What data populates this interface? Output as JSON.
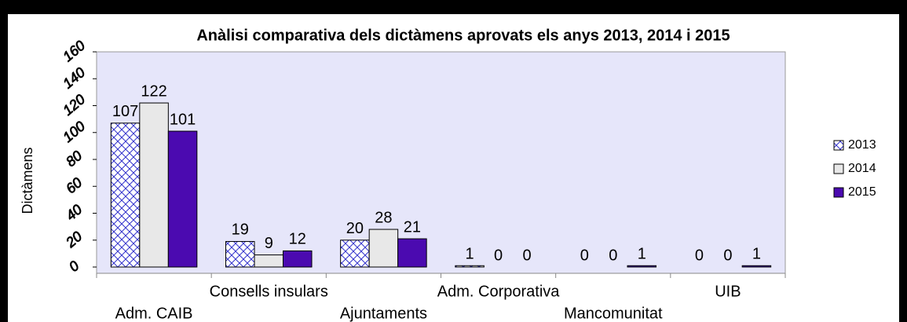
{
  "chart_data": {
    "type": "bar",
    "title": "Anàlisi comparativa dels dictàmens aprovats els anys 2013, 2014 i 2015",
    "y_label": "Dictàmens",
    "categories": [
      "Adm. CAIB",
      "Consells insulars",
      "Ajuntaments",
      "Adm. Corporativa",
      "Mancomunitat",
      "UIB"
    ],
    "series": [
      {
        "name": "2013",
        "color": "#3333cc",
        "hatch": true,
        "values": [
          107,
          19,
          20,
          1,
          0,
          0
        ]
      },
      {
        "name": "2014",
        "color": "#e8e8e8",
        "hatch": false,
        "values": [
          122,
          9,
          28,
          0,
          0,
          0
        ]
      },
      {
        "name": "2015",
        "color": "#4b0ab0",
        "hatch": false,
        "values": [
          101,
          12,
          21,
          0,
          1,
          1
        ]
      }
    ],
    "ylim": [
      0,
      160
    ],
    "yticks": [
      0,
      20,
      40,
      60,
      80,
      100,
      120,
      140,
      160
    ],
    "legend": "right"
  }
}
